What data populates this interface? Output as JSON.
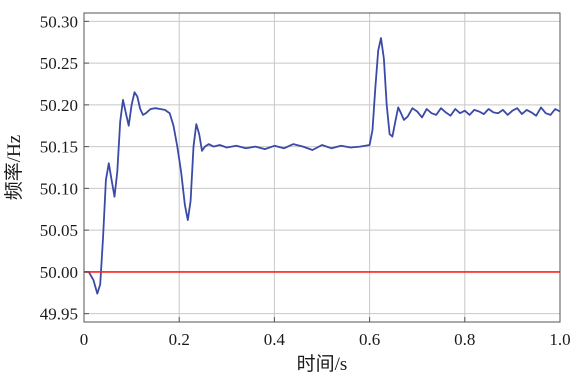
{
  "chart_data": {
    "type": "line",
    "title": "",
    "xlabel": "时间/s",
    "ylabel": "频率/Hz",
    "xlim": [
      0,
      1.0
    ],
    "ylim": [
      49.94,
      50.31
    ],
    "xticks": [
      0,
      0.2,
      0.4,
      0.6,
      0.8,
      1.0
    ],
    "xtick_labels": [
      "0",
      "0.2",
      "0.4",
      "0.6",
      "0.8",
      "1.0"
    ],
    "yticks": [
      49.95,
      50.0,
      50.05,
      50.1,
      50.15,
      50.2,
      50.25,
      50.3
    ],
    "ytick_labels": [
      "49.95",
      "50.00",
      "50.05",
      "50.10",
      "50.15",
      "50.20",
      "50.25",
      "50.30"
    ],
    "grid": true,
    "series": [
      {
        "color": "#3b4aa6",
        "x": [
          0.0,
          0.01,
          0.02,
          0.028,
          0.034,
          0.04,
          0.046,
          0.052,
          0.058,
          0.064,
          0.07,
          0.076,
          0.082,
          0.088,
          0.094,
          0.1,
          0.106,
          0.112,
          0.118,
          0.124,
          0.13,
          0.14,
          0.15,
          0.16,
          0.17,
          0.18,
          0.188,
          0.196,
          0.204,
          0.212,
          0.218,
          0.224,
          0.23,
          0.236,
          0.242,
          0.248,
          0.254,
          0.262,
          0.272,
          0.285,
          0.3,
          0.32,
          0.34,
          0.36,
          0.38,
          0.4,
          0.42,
          0.44,
          0.46,
          0.48,
          0.5,
          0.52,
          0.54,
          0.56,
          0.58,
          0.6,
          0.606,
          0.612,
          0.618,
          0.624,
          0.63,
          0.636,
          0.642,
          0.648,
          0.654,
          0.66,
          0.666,
          0.672,
          0.68,
          0.69,
          0.7,
          0.71,
          0.72,
          0.73,
          0.74,
          0.75,
          0.76,
          0.77,
          0.78,
          0.79,
          0.8,
          0.81,
          0.82,
          0.83,
          0.84,
          0.85,
          0.86,
          0.87,
          0.88,
          0.89,
          0.9,
          0.91,
          0.92,
          0.93,
          0.94,
          0.95,
          0.96,
          0.97,
          0.98,
          0.99,
          1.0
        ],
        "values": [
          50.0,
          50.0,
          49.99,
          49.974,
          49.985,
          50.04,
          50.11,
          50.13,
          50.11,
          50.09,
          50.12,
          50.18,
          50.206,
          50.19,
          50.175,
          50.2,
          50.215,
          50.21,
          50.195,
          50.188,
          50.19,
          50.195,
          50.196,
          50.195,
          50.194,
          50.19,
          50.175,
          50.15,
          50.12,
          50.08,
          50.062,
          50.085,
          50.15,
          50.177,
          50.165,
          50.145,
          50.15,
          50.153,
          50.15,
          50.152,
          50.149,
          50.151,
          50.148,
          50.15,
          50.147,
          50.151,
          50.148,
          50.153,
          50.15,
          50.146,
          50.152,
          50.148,
          50.151,
          50.149,
          50.15,
          50.152,
          50.17,
          50.22,
          50.265,
          50.28,
          50.255,
          50.2,
          50.165,
          50.162,
          50.18,
          50.197,
          50.19,
          50.182,
          50.186,
          50.196,
          50.192,
          50.185,
          50.195,
          50.19,
          50.188,
          50.196,
          50.191,
          50.187,
          50.195,
          50.19,
          50.193,
          50.188,
          50.194,
          50.192,
          50.189,
          50.195,
          50.191,
          50.19,
          50.194,
          50.188,
          50.193,
          50.196,
          50.189,
          50.194,
          50.191,
          50.187,
          50.197,
          50.19,
          50.188,
          50.195,
          50.192
        ]
      },
      {
        "color": "#ff2020",
        "x": [
          0.0,
          1.0
        ],
        "values": [
          50.0,
          50.0
        ]
      }
    ]
  }
}
